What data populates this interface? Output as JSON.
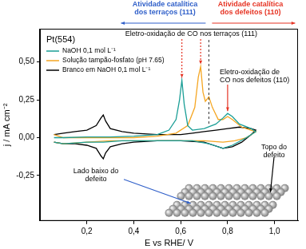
{
  "chart_data": {
    "type": "line",
    "title": "Pt(554)",
    "x_label": "E vs RHE/ V",
    "y_label": "j / mA cm⁻²",
    "xlim": [
      0,
      1.1
    ],
    "xticks": [
      {
        "value": 0.2,
        "label": "0,2"
      },
      {
        "value": 0.4,
        "label": "0,4"
      },
      {
        "value": 0.6,
        "label": "0,6"
      },
      {
        "value": 0.8,
        "label": "0,8"
      },
      {
        "value": 1.0,
        "label": "1,0"
      }
    ],
    "ylim": [
      -0.55,
      0.72
    ],
    "yticks": [
      {
        "value": -0.25,
        "label": "-0,25"
      },
      {
        "value": 0,
        "label": "0,00"
      },
      {
        "value": 0.25,
        "label": "0,25"
      },
      {
        "value": 0.5,
        "label": "0,50"
      }
    ],
    "grid": false,
    "legend": "upper left",
    "divider_x": 0.72,
    "series": [
      {
        "name": "NaOH 0,1 mol L⁻¹",
        "color": "#1a9e96",
        "x": [
          0.06,
          0.1,
          0.2,
          0.3,
          0.4,
          0.5,
          0.55,
          0.58,
          0.595,
          0.605,
          0.615,
          0.63,
          0.65,
          0.7,
          0.75,
          0.78,
          0.8,
          0.82,
          0.85,
          0.9,
          0.92,
          0.88,
          0.82,
          0.78,
          0.72,
          0.65,
          0.5,
          0.35,
          0.27,
          0.2,
          0.1,
          0.06
        ],
        "values": [
          0.0,
          0.0,
          0.005,
          0.005,
          0.01,
          0.02,
          0.05,
          0.12,
          0.25,
          0.38,
          0.22,
          0.08,
          0.05,
          0.06,
          0.09,
          0.13,
          0.16,
          0.14,
          0.09,
          0.06,
          0.04,
          0.0,
          -0.05,
          -0.07,
          -0.04,
          -0.02,
          -0.02,
          -0.02,
          -0.03,
          -0.03,
          -0.04,
          -0.03
        ]
      },
      {
        "name": "Solução tampão-fosfato (pH 7.65)",
        "color": "#f5a623",
        "x": [
          0.06,
          0.1,
          0.2,
          0.3,
          0.4,
          0.5,
          0.58,
          0.63,
          0.66,
          0.675,
          0.685,
          0.695,
          0.705,
          0.72,
          0.735,
          0.76,
          0.78,
          0.8,
          0.82,
          0.86,
          0.9,
          0.92,
          0.88,
          0.83,
          0.78,
          0.7,
          0.6,
          0.5,
          0.4,
          0.3,
          0.2,
          0.1,
          0.06
        ],
        "values": [
          0.02,
          0.0,
          0.0,
          0.0,
          0.0,
          0.01,
          0.03,
          0.08,
          0.2,
          0.4,
          0.47,
          0.3,
          0.24,
          0.27,
          0.2,
          0.12,
          0.12,
          0.14,
          0.12,
          0.07,
          0.05,
          0.04,
          0.0,
          -0.02,
          -0.03,
          -0.02,
          -0.02,
          -0.02,
          -0.02,
          -0.02,
          -0.03,
          -0.04,
          -0.03
        ]
      },
      {
        "name": "Branco em NaOH 0,1 mol L⁻¹",
        "color": "#000000",
        "x": [
          0.06,
          0.1,
          0.15,
          0.2,
          0.24,
          0.26,
          0.27,
          0.28,
          0.3,
          0.35,
          0.4,
          0.5,
          0.6,
          0.65,
          0.7,
          0.75,
          0.8,
          0.85,
          0.9,
          0.92,
          0.9,
          0.86,
          0.82,
          0.78,
          0.74,
          0.7,
          0.6,
          0.5,
          0.4,
          0.35,
          0.3,
          0.28,
          0.27,
          0.26,
          0.24,
          0.2,
          0.15,
          0.1,
          0.06
        ],
        "values": [
          0.02,
          0.03,
          0.04,
          0.05,
          0.08,
          0.13,
          0.15,
          0.11,
          0.06,
          0.04,
          0.03,
          0.02,
          0.02,
          0.03,
          0.04,
          0.05,
          0.06,
          0.07,
          0.06,
          0.05,
          0.02,
          -0.03,
          -0.06,
          -0.07,
          -0.05,
          -0.03,
          -0.02,
          -0.02,
          -0.03,
          -0.04,
          -0.06,
          -0.1,
          -0.14,
          -0.12,
          -0.07,
          -0.05,
          -0.04,
          -0.04,
          -0.03
        ]
      }
    ],
    "annotations": [
      {
        "text": [
          "Atividade catalítica",
          "dos terraços (111)"
        ],
        "color": "#2f5fc9"
      },
      {
        "text": [
          "Atividade catalítica",
          "dos defeitos (110)"
        ],
        "color": "#e63323"
      },
      {
        "text": [
          "Eletro-oxidação de CO nos terraços (111)"
        ],
        "color": "#000000"
      },
      {
        "text": [
          "Eletro-oxidação de",
          "CO nos defeitos (110)"
        ],
        "color": "#000000"
      },
      {
        "text": [
          "Topo do",
          "defeito"
        ],
        "color": "#000000"
      },
      {
        "text": [
          "Lado baixo do",
          "defeito"
        ],
        "color": "#000000"
      }
    ]
  }
}
